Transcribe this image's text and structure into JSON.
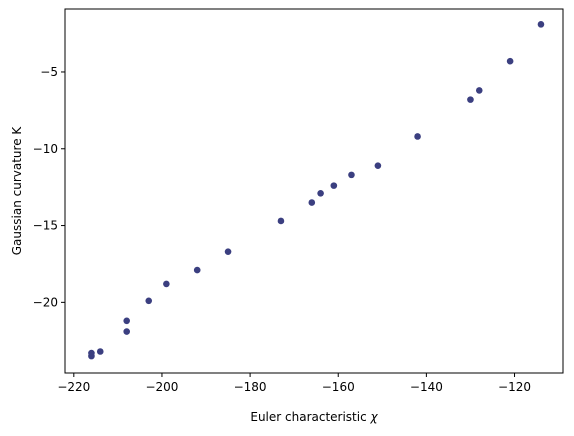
{
  "chart_data": {
    "type": "scatter",
    "xlabel_main": "Euler characteristic ",
    "xlabel_symbol": "χ",
    "ylabel": "Gaussian curvature K",
    "xlim": [
      -222,
      -109
    ],
    "ylim": [
      -24.6,
      -0.9
    ],
    "xticks": [
      -220,
      -200,
      -180,
      -160,
      -140,
      -120
    ],
    "xtick_labels": [
      "−220",
      "−200",
      "−180",
      "−160",
      "−140",
      "−120"
    ],
    "yticks": [
      -20,
      -15,
      -10,
      -5
    ],
    "ytick_labels": [
      "−20",
      "−15",
      "−10",
      "−5"
    ],
    "grid": false,
    "marker_color": "#3b3f80",
    "points": [
      {
        "x": -216,
        "y": -23.5
      },
      {
        "x": -216,
        "y": -23.3
      },
      {
        "x": -214,
        "y": -23.2
      },
      {
        "x": -208,
        "y": -21.9
      },
      {
        "x": -208,
        "y": -21.2
      },
      {
        "x": -203,
        "y": -19.9
      },
      {
        "x": -199,
        "y": -18.8
      },
      {
        "x": -192,
        "y": -17.9
      },
      {
        "x": -185,
        "y": -16.7
      },
      {
        "x": -173,
        "y": -14.7
      },
      {
        "x": -166,
        "y": -13.5
      },
      {
        "x": -164,
        "y": -12.9
      },
      {
        "x": -161,
        "y": -12.4
      },
      {
        "x": -157,
        "y": -11.7
      },
      {
        "x": -151,
        "y": -11.1
      },
      {
        "x": -142,
        "y": -9.2
      },
      {
        "x": -130,
        "y": -6.8
      },
      {
        "x": -128,
        "y": -6.2
      },
      {
        "x": -121,
        "y": -4.3
      },
      {
        "x": -114,
        "y": -1.9
      }
    ]
  }
}
